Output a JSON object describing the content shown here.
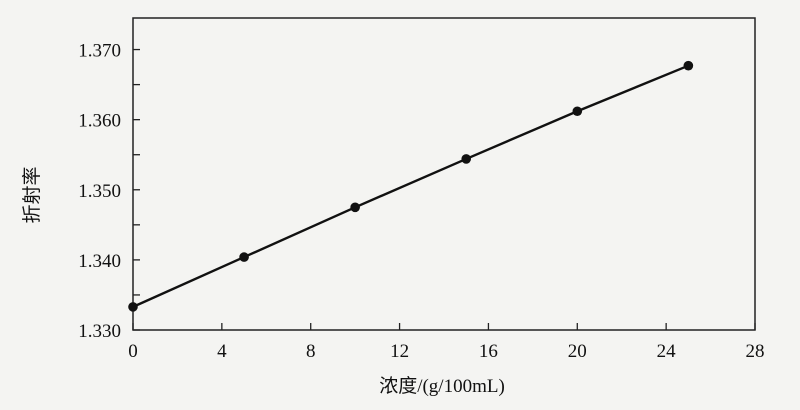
{
  "chart_data": {
    "type": "line",
    "title": "",
    "xlabel": "浓度/(g/100mL)",
    "ylabel": "折射率",
    "xlim": [
      0,
      28
    ],
    "ylim": [
      1.33,
      1.3745
    ],
    "x_ticks": [
      "0",
      "4",
      "8",
      "12",
      "16",
      "20",
      "24",
      "28"
    ],
    "y_ticks": [
      "1.330",
      "1.340",
      "1.350",
      "1.360",
      "1.370"
    ],
    "grid": false,
    "markers": true,
    "series": [
      {
        "x": [
          0,
          5,
          10,
          15,
          20,
          25
        ],
        "y": [
          1.3333,
          1.3404,
          1.3475,
          1.3544,
          1.3612,
          1.3677
        ]
      }
    ],
    "line_color": "#111111"
  }
}
